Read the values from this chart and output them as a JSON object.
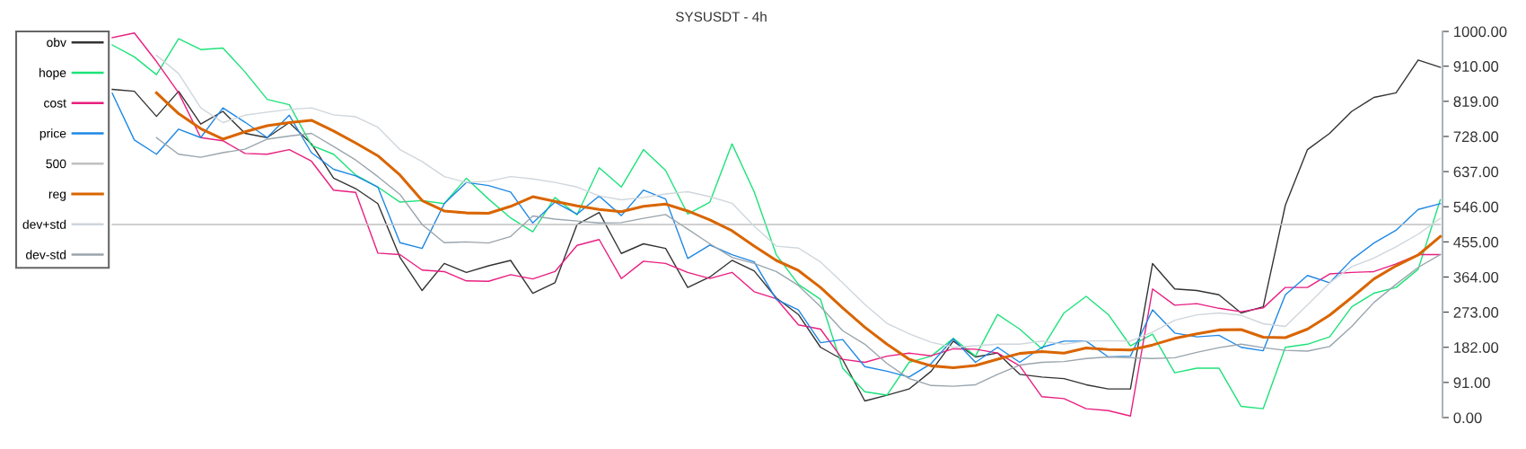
{
  "chart_data": {
    "type": "line",
    "title": "SYSUSDT - 4h",
    "categories": [
      null,
      null,
      null,
      null,
      null,
      null,
      null,
      null,
      null,
      null,
      null,
      null,
      null,
      null,
      null,
      null,
      null,
      null,
      null,
      null,
      null,
      null,
      null,
      null,
      null,
      null,
      null,
      null,
      null,
      null,
      null,
      null,
      null,
      null,
      null,
      null,
      null,
      null,
      null,
      null,
      null,
      null,
      null,
      null,
      null,
      null,
      null,
      null,
      null,
      null,
      null,
      null,
      null,
      null,
      null,
      null,
      null,
      null,
      null,
      null,
      null
    ],
    "series": [
      {
        "name": "obv",
        "color": "#333333",
        "values": [
          850,
          845,
          780,
          845,
          760,
          793,
          736,
          725,
          764,
          709,
          620,
          593,
          554,
          415,
          329,
          399,
          376,
          393,
          407,
          322,
          349,
          500,
          531,
          425,
          450,
          438,
          337,
          364,
          407,
          380,
          310,
          267,
          182,
          150,
          43,
          58,
          74,
          120,
          198,
          157,
          167,
          112,
          105,
          101,
          85,
          74,
          74,
          399,
          333,
          329,
          318,
          271,
          287,
          550,
          694,
          736,
          793,
          829,
          841,
          926,
          907
        ]
      },
      {
        "name": "hope",
        "color": "#1de27a",
        "values": [
          965,
          934,
          888,
          981,
          953,
          957,
          895,
          824,
          810,
          705,
          682,
          628,
          597,
          558,
          562,
          554,
          620,
          566,
          517,
          481,
          570,
          525,
          647,
          597,
          694,
          640,
          527,
          558,
          709,
          585,
          422,
          345,
          306,
          128,
          67,
          58,
          143,
          159,
          205,
          159,
          267,
          229,
          178,
          271,
          314,
          267,
          186,
          216,
          116,
          128,
          128,
          29,
          23,
          182,
          190,
          209,
          287,
          322,
          337,
          384,
          564
        ]
      },
      {
        "name": "cost",
        "color": "#e91e80",
        "values": [
          984,
          996,
          922,
          841,
          725,
          717,
          684,
          682,
          694,
          664,
          589,
          583,
          426,
          422,
          382,
          378,
          354,
          353,
          370,
          359,
          378,
          446,
          461,
          360,
          405,
          399,
          376,
          360,
          376,
          326,
          308,
          240,
          229,
          151,
          143,
          159,
          167,
          160,
          178,
          177,
          167,
          134,
          54,
          49,
          23,
          18,
          4,
          333,
          291,
          295,
          283,
          274,
          284,
          337,
          337,
          372,
          376,
          378,
          398,
          422,
          422
        ]
      },
      {
        "name": "price",
        "color": "#1e88e5",
        "values": [
          840,
          719,
          682,
          747,
          725,
          802,
          765,
          725,
          783,
          686,
          643,
          626,
          597,
          453,
          438,
          554,
          609,
          601,
          584,
          504,
          558,
          527,
          574,
          523,
          589,
          566,
          412,
          447,
          422,
          403,
          306,
          279,
          194,
          202,
          132,
          120,
          105,
          140,
          204,
          143,
          182,
          143,
          182,
          198,
          198,
          157,
          159,
          279,
          219,
          209,
          213,
          182,
          173,
          318,
          368,
          349,
          409,
          452,
          485,
          539,
          554
        ]
      },
      {
        "name": "500",
        "color": "#c0c0c0",
        "values": [
          500,
          500,
          500,
          500,
          500,
          500,
          500,
          500,
          500,
          500,
          500,
          500,
          500,
          500,
          500,
          500,
          500,
          500,
          500,
          500,
          500,
          500,
          500,
          500,
          500,
          500,
          500,
          500,
          500,
          500,
          500,
          500,
          500,
          500,
          500,
          500,
          500,
          500,
          500,
          500,
          500,
          500,
          500,
          500,
          500,
          500,
          500,
          500,
          500,
          500,
          500,
          500,
          500,
          500,
          500,
          500,
          500,
          500,
          500,
          500,
          500
        ]
      },
      {
        "name": "reg",
        "color": "#d96500",
        "values": [
          null,
          null,
          841,
          787,
          748,
          721,
          740,
          756,
          764,
          770,
          742,
          711,
          678,
          628,
          562,
          535,
          530,
          529,
          547,
          572,
          560,
          548,
          539,
          533,
          547,
          553,
          535,
          512,
          484,
          444,
          407,
          381,
          337,
          284,
          234,
          190,
          151,
          134,
          129,
          135,
          151,
          166,
          171,
          167,
          180,
          176,
          175,
          188,
          205,
          217,
          227,
          228,
          208,
          207,
          229,
          265,
          311,
          359,
          393,
          421,
          469
        ]
      },
      {
        "name": "dev+std",
        "color": "#cfd6dc",
        "values": [
          null,
          null,
          938,
          891,
          802,
          764,
          783,
          791,
          798,
          802,
          784,
          779,
          752,
          694,
          663,
          624,
          609,
          612,
          624,
          618,
          609,
          597,
          574,
          564,
          570,
          579,
          585,
          572,
          555,
          496,
          444,
          439,
          403,
          349,
          293,
          244,
          217,
          195,
          182,
          186,
          190,
          190,
          198,
          190,
          198,
          199,
          198,
          221,
          252,
          266,
          271,
          265,
          243,
          236,
          292,
          349,
          391,
          413,
          442,
          475,
          516
        ]
      },
      {
        "name": "dev-std",
        "color": "#9aa5ad",
        "values": [
          null,
          null,
          725,
          682,
          674,
          686,
          695,
          721,
          729,
          736,
          702,
          667,
          624,
          578,
          500,
          453,
          455,
          452,
          469,
          522,
          514,
          509,
          504,
          505,
          516,
          526,
          488,
          450,
          415,
          399,
          378,
          342,
          287,
          225,
          190,
          140,
          101,
          83,
          81,
          85,
          112,
          136,
          143,
          145,
          153,
          157,
          155,
          153,
          155,
          169,
          181,
          190,
          181,
          174,
          172,
          184,
          236,
          298,
          345,
          389,
          422
        ]
      }
    ],
    "ylim": [
      0,
      1000
    ],
    "yticks": [
      {
        "value": 0,
        "label": "0.00"
      },
      {
        "value": 91,
        "label": "91.00"
      },
      {
        "value": 182,
        "label": "182.00"
      },
      {
        "value": 273,
        "label": "273.00"
      },
      {
        "value": 364,
        "label": "364.00"
      },
      {
        "value": 455,
        "label": "455.00"
      },
      {
        "value": 546,
        "label": "546.00"
      },
      {
        "value": 637,
        "label": "637.00"
      },
      {
        "value": 728,
        "label": "728.00"
      },
      {
        "value": 819,
        "label": "819.00"
      },
      {
        "value": 910,
        "label": "910.00"
      },
      {
        "value": 1000,
        "label": "1000.00"
      }
    ],
    "tick_labels": "y",
    "grid": false,
    "legend": "top left",
    "marker": "none",
    "line_style": "solid"
  }
}
